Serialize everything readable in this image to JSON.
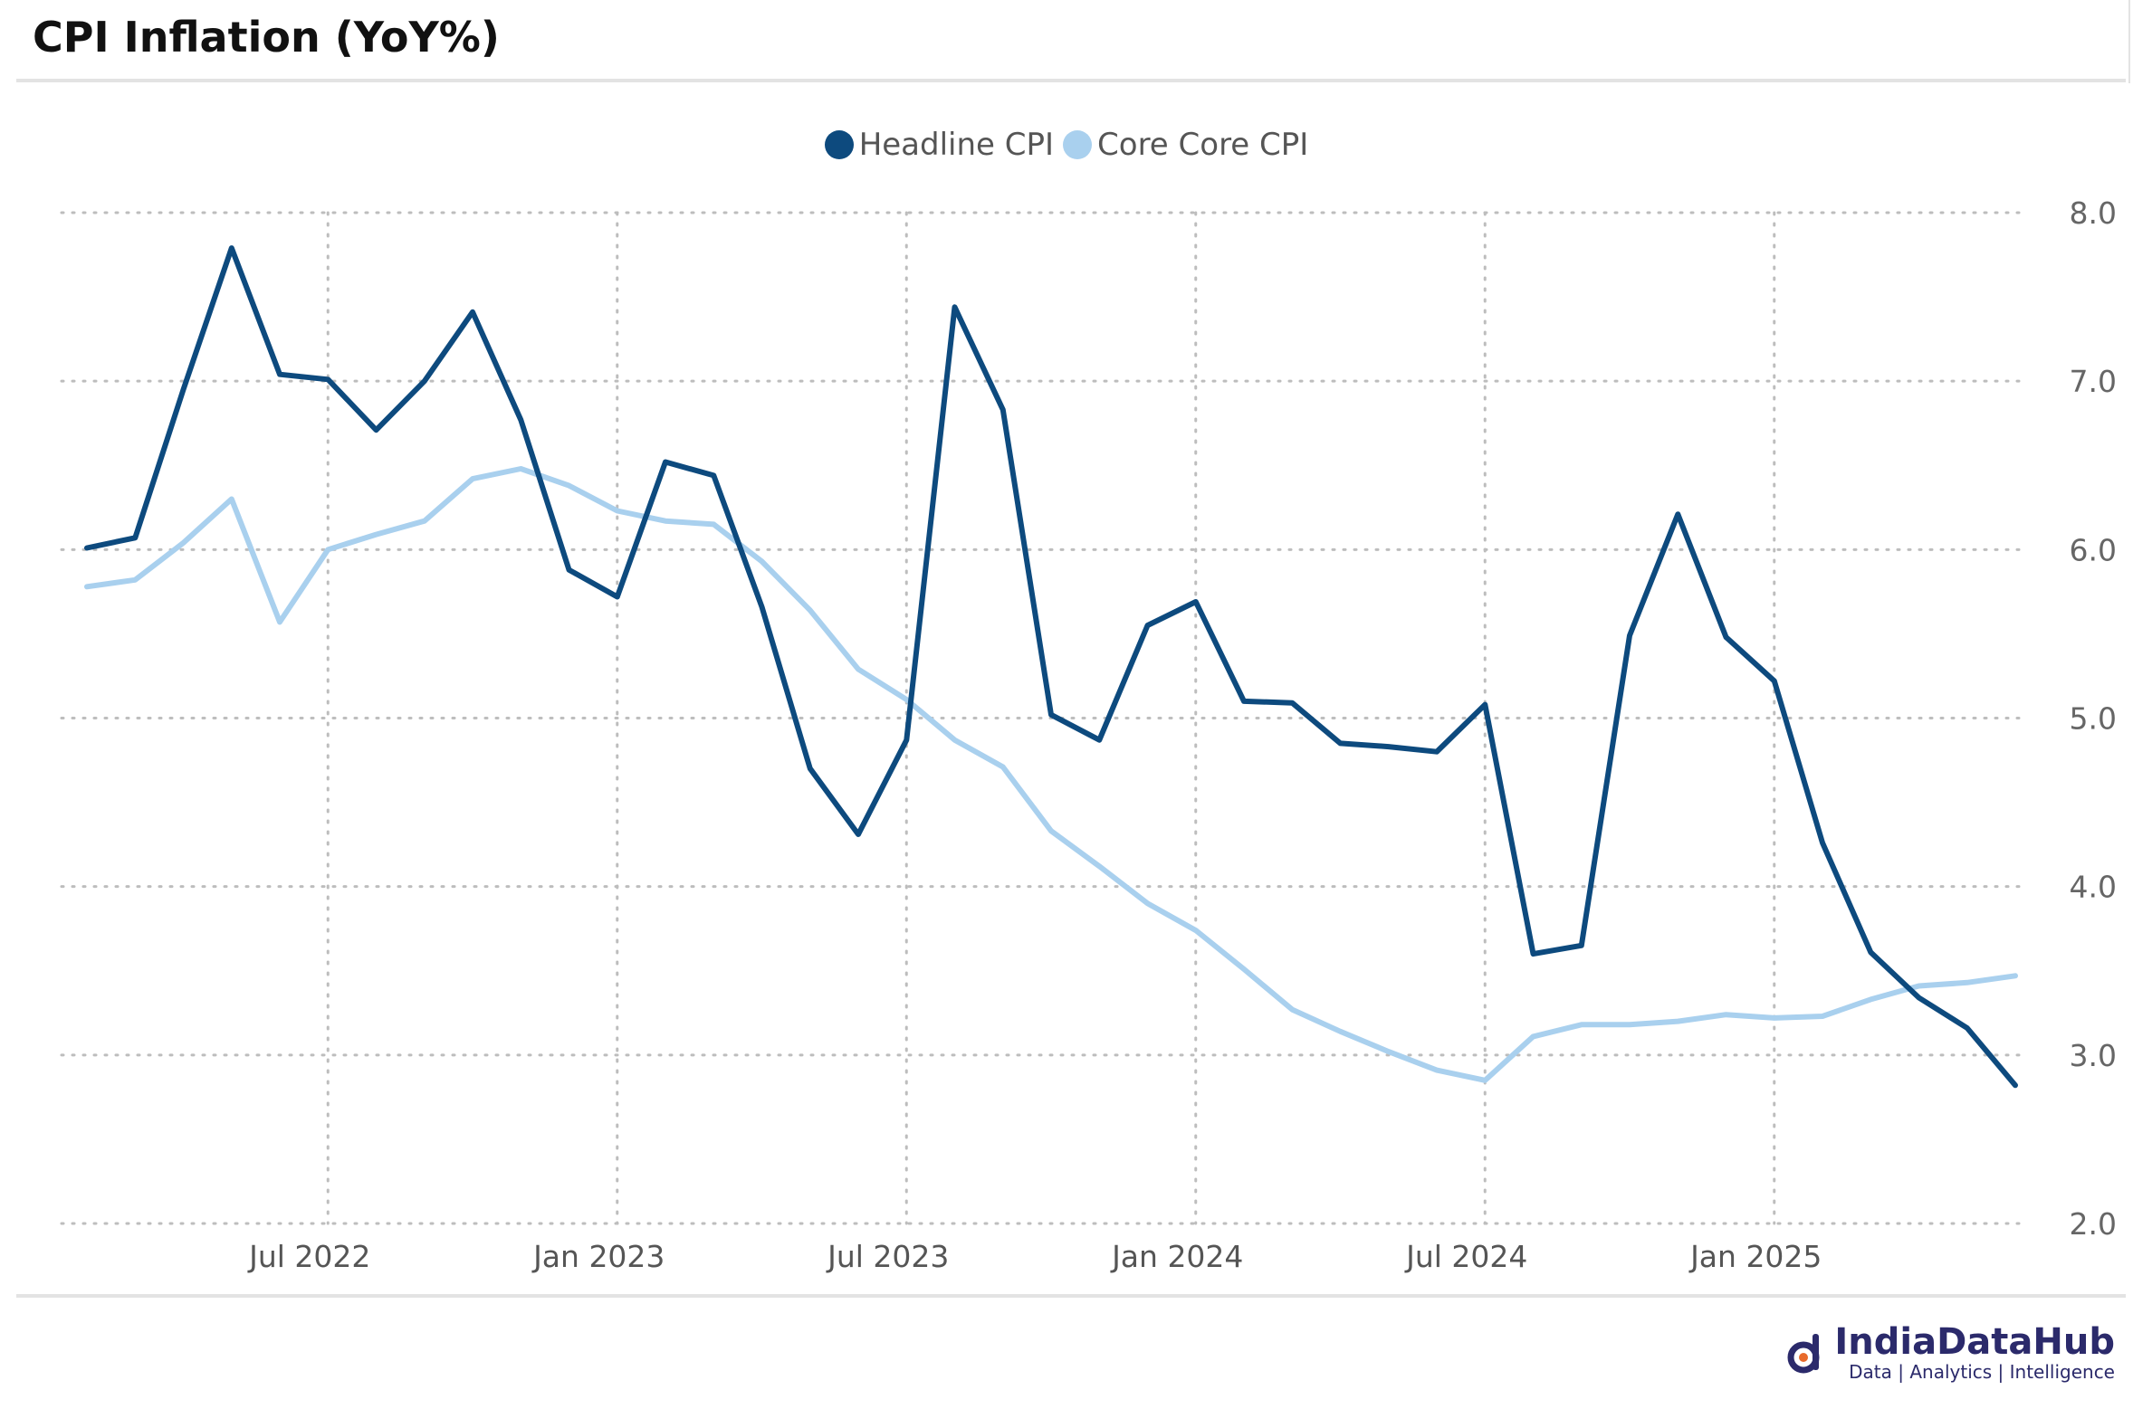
{
  "title": "CPI Inflation (YoY%)",
  "logo": {
    "name": "IndiaDataHub",
    "tagline": "Data | Analytics | Intelligence"
  },
  "chart_data": {
    "type": "line",
    "title": "CPI Inflation (YoY%)",
    "xlabel": "",
    "ylabel": "",
    "ylim": [
      2.0,
      8.0
    ],
    "y_ticks": [
      "8.0",
      "7.0",
      "6.0",
      "5.0",
      "4.0",
      "3.0",
      "2.0"
    ],
    "y_axis_side": "right",
    "x_tick_labels": [
      "Jul 2022",
      "Jan 2023",
      "Jul 2023",
      "Jan 2024",
      "Jul 2024",
      "Jan 2025"
    ],
    "x_tick_positions": [
      "2022-07",
      "2023-01",
      "2023-07",
      "2024-01",
      "2024-07",
      "2025-01"
    ],
    "grid": true,
    "legend_position": "top-center",
    "x": [
      "2022-02",
      "2022-03",
      "2022-04",
      "2022-05",
      "2022-06",
      "2022-07",
      "2022-08",
      "2022-09",
      "2022-10",
      "2022-11",
      "2022-12",
      "2023-01",
      "2023-02",
      "2023-03",
      "2023-04",
      "2023-05",
      "2023-06",
      "2023-07",
      "2023-08",
      "2023-09",
      "2023-10",
      "2023-11",
      "2023-12",
      "2024-01",
      "2024-02",
      "2024-03",
      "2024-04",
      "2024-05",
      "2024-06",
      "2024-07",
      "2024-08",
      "2024-09",
      "2024-10",
      "2024-11",
      "2024-12",
      "2025-01",
      "2025-02",
      "2025-03",
      "2025-04",
      "2025-05",
      "2025-06"
    ],
    "series": [
      {
        "name": "Headline CPI",
        "color": "#0d4a7e",
        "values": [
          6.01,
          6.07,
          6.95,
          7.79,
          7.04,
          7.01,
          6.71,
          7.0,
          7.41,
          6.77,
          5.88,
          5.72,
          6.52,
          6.44,
          5.66,
          4.7,
          4.31,
          4.87,
          7.44,
          6.83,
          5.02,
          4.87,
          5.55,
          5.69,
          5.1,
          5.09,
          4.85,
          4.83,
          4.8,
          5.08,
          3.6,
          3.65,
          5.49,
          6.21,
          5.48,
          5.22,
          4.26,
          3.61,
          3.34,
          3.16,
          2.82
        ]
      },
      {
        "name": "Core Core CPI",
        "color": "#a9d0ee",
        "values": [
          5.78,
          5.82,
          6.04,
          6.3,
          5.57,
          6.0,
          6.09,
          6.17,
          6.42,
          6.48,
          6.38,
          6.23,
          6.17,
          6.15,
          5.93,
          5.64,
          5.29,
          5.11,
          4.87,
          4.71,
          4.33,
          4.12,
          3.9,
          3.74,
          3.51,
          3.27,
          3.14,
          3.02,
          2.91,
          2.85,
          3.11,
          3.18,
          3.18,
          3.2,
          3.24,
          3.22,
          3.23,
          3.33,
          3.41,
          3.43,
          3.47
        ]
      }
    ]
  }
}
